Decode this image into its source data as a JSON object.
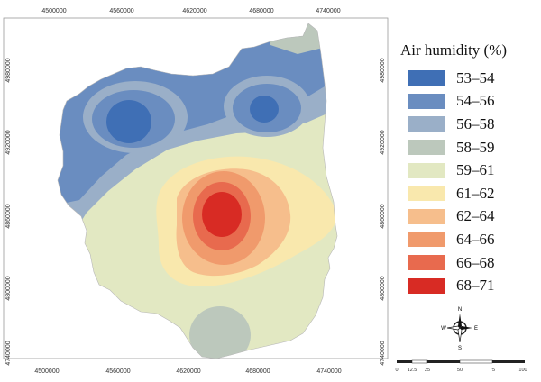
{
  "map": {
    "x_ticks": [
      "4500000",
      "4560000",
      "4620000",
      "4680000",
      "4740000"
    ],
    "y_ticks": [
      "4980000",
      "4920000",
      "4860000",
      "4800000",
      "4740000"
    ]
  },
  "legend": {
    "title": "Air humidity (%)",
    "classes": [
      {
        "label": "53–54",
        "color": "#3f6fb5"
      },
      {
        "label": "54–56",
        "color": "#6a8dc0"
      },
      {
        "label": "56–58",
        "color": "#9aafc8"
      },
      {
        "label": "58–59",
        "color": "#bcc8bc"
      },
      {
        "label": "59–61",
        "color": "#e2e8c2"
      },
      {
        "label": "61–62",
        "color": "#f9e8ad"
      },
      {
        "label": "62–64",
        "color": "#f6be8c"
      },
      {
        "label": "64–66",
        "color": "#f09a6c"
      },
      {
        "label": "66–68",
        "color": "#e86a4e"
      },
      {
        "label": "68–71",
        "color": "#d82b24"
      }
    ]
  },
  "north_arrow": {
    "n": "N",
    "s": "S",
    "e": "E",
    "w": "W"
  },
  "scale": {
    "ticks": [
      "0",
      "12.5",
      "25",
      "50",
      "75",
      "100"
    ]
  }
}
